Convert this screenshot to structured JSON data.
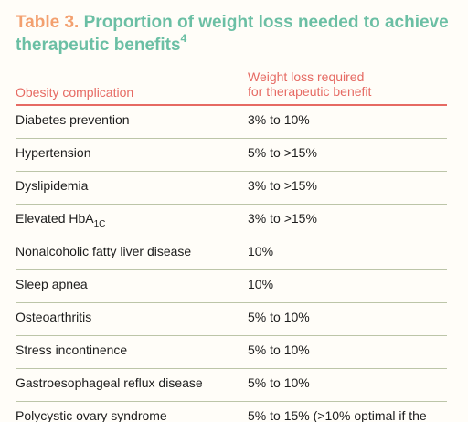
{
  "title": {
    "label": "Table 3.",
    "text": "Proportion of weight loss needed to achieve therapeutic benefits",
    "ref": "4"
  },
  "columns": {
    "complication": "Obesity complication",
    "weight_loss_line1": "Weight loss required",
    "weight_loss_line2": "for therapeutic benefit"
  },
  "rows": [
    {
      "complication": "Diabetes prevention",
      "weight_loss": "3% to 10%"
    },
    {
      "complication": "Hypertension",
      "weight_loss": "5% to >15%"
    },
    {
      "complication": "Dyslipidemia",
      "weight_loss": "3% to >15%"
    },
    {
      "complication": "Elevated HbA",
      "subscript": "1C",
      "weight_loss": "3% to >15%"
    },
    {
      "complication": "Nonalcoholic fatty liver disease",
      "weight_loss": "10%"
    },
    {
      "complication": "Sleep apnea",
      "weight_loss": "10%"
    },
    {
      "complication": "Osteoarthritis",
      "weight_loss": "5% to 10%"
    },
    {
      "complication": "Stress incontinence",
      "weight_loss": "5% to 10%"
    },
    {
      "complication": "Gastroesophageal reflux disease",
      "weight_loss": "5% to 10%"
    },
    {
      "complication": "Polycystic ovary syndrome",
      "weight_loss": "5% to 15% (>10% optimal if the"
    }
  ],
  "colors": {
    "title_label": "#f3a06f",
    "title_text": "#6bbfa4",
    "header": "#e66a63",
    "row_rule": "#bcc5a8",
    "body_text": "#1d1d1d"
  }
}
